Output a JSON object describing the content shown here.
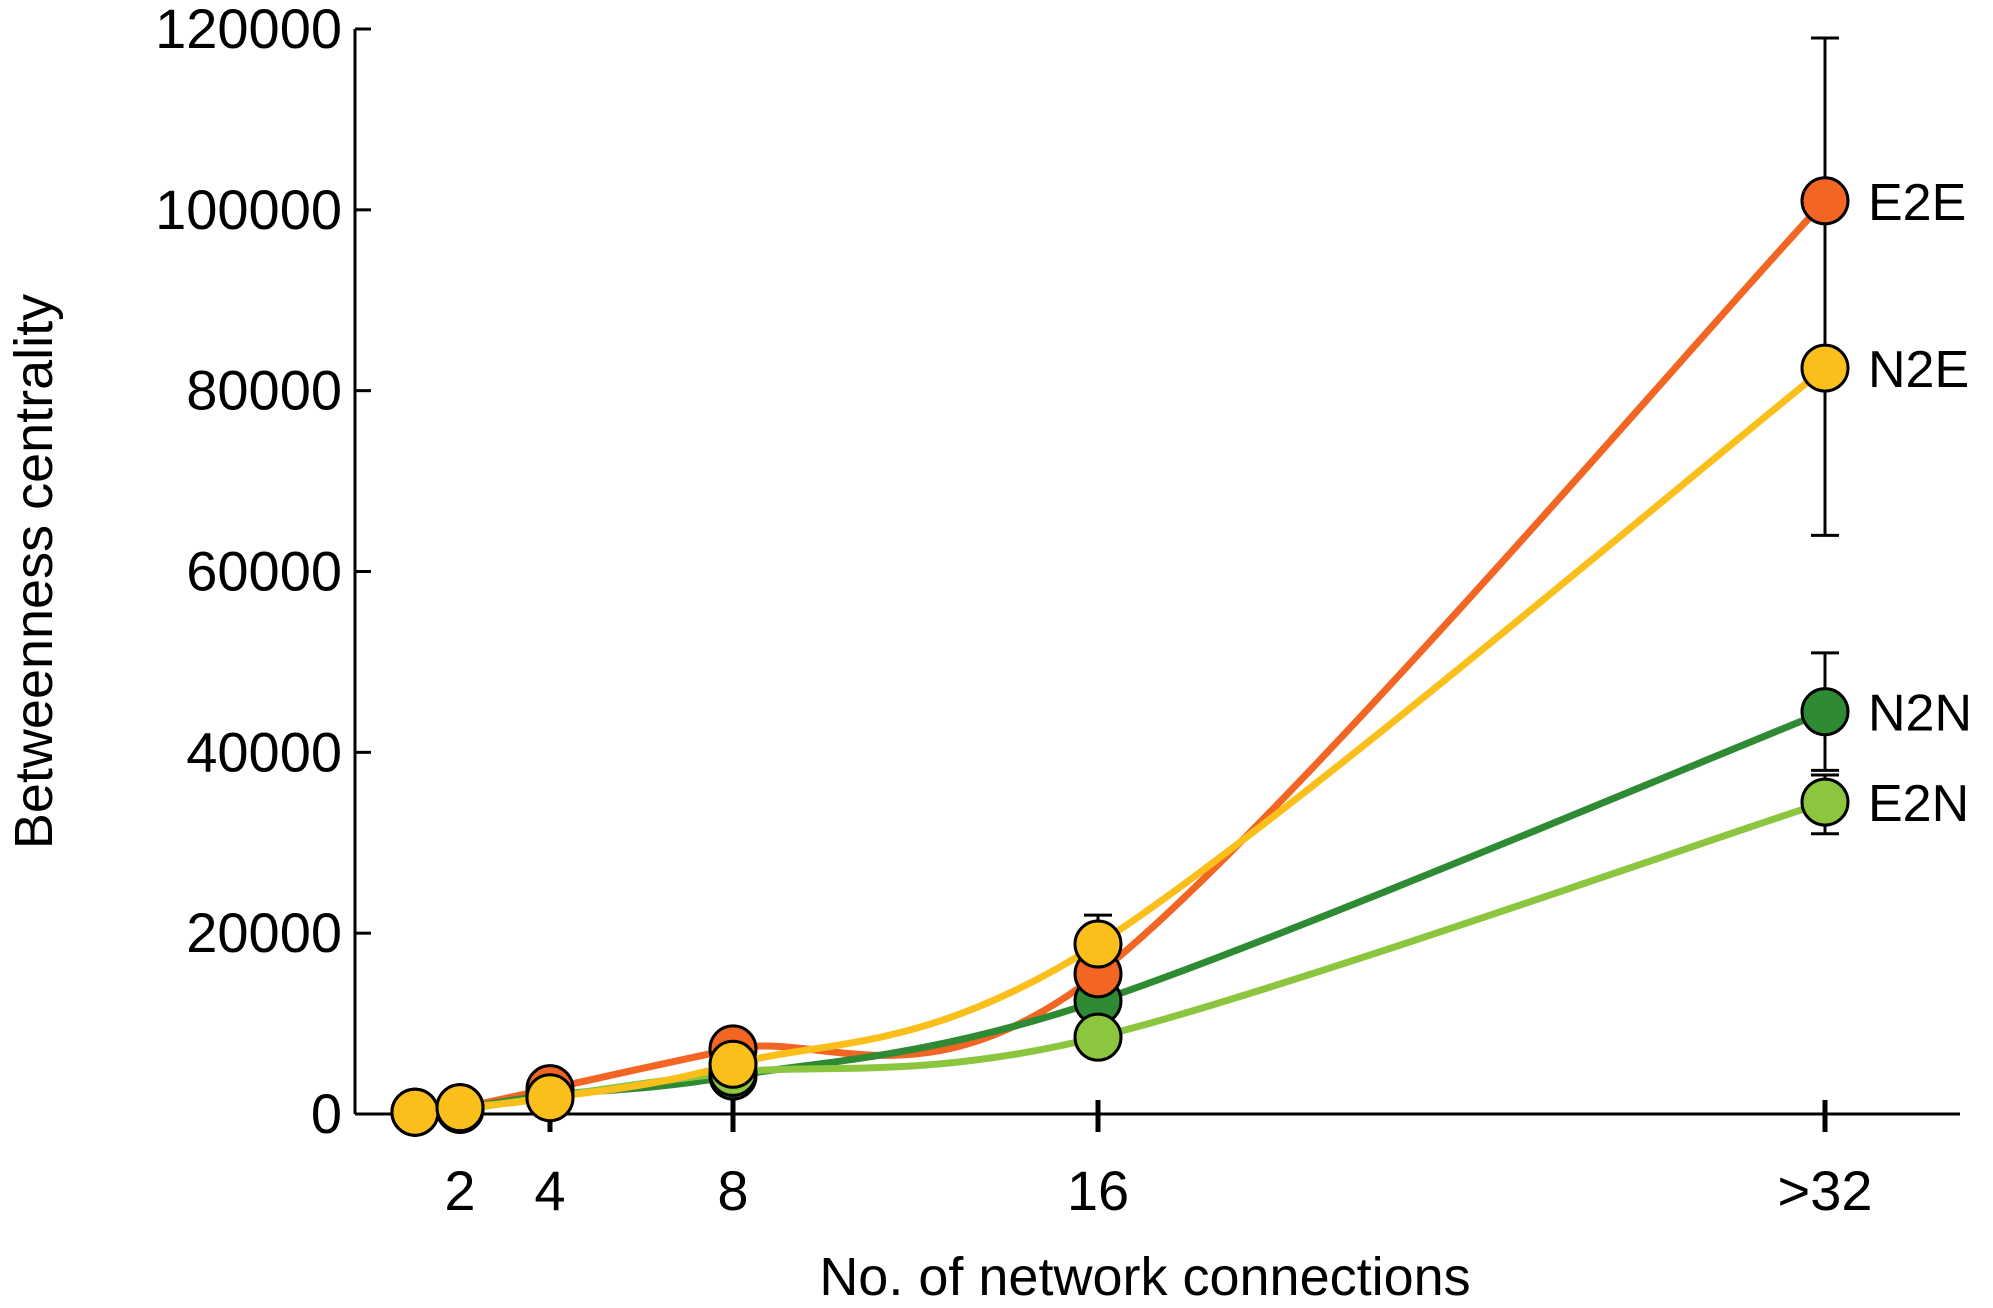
{
  "chart_data": {
    "type": "line",
    "title": "",
    "xlabel": "No. of network connections",
    "ylabel": "Betweenness centrality",
    "ylim": [
      0,
      120000
    ],
    "y_ticks": [
      "0",
      "20000",
      "40000",
      "60000",
      "80000",
      "100000",
      "120000"
    ],
    "y_tick_values": [
      0,
      20000,
      40000,
      60000,
      80000,
      100000,
      120000
    ],
    "x_ticks": [
      {
        "label": "2",
        "value": 2
      },
      {
        "label": "4",
        "value": 4
      },
      {
        "label": "8",
        "value": 8
      },
      {
        "label": "16",
        "value": 16
      },
      {
        "label": ">32",
        "value": 32
      }
    ],
    "x": [
      1,
      2,
      4,
      8,
      16,
      32
    ],
    "grid": false,
    "legend": "inline labels at right end of each series",
    "series": [
      {
        "name": "E2E",
        "color": "#f26522",
        "values": [
          200,
          700,
          2800,
          7200,
          15500,
          101000
        ],
        "error_top": 119000,
        "error_bottom": 64000,
        "error_at_16": 0
      },
      {
        "name": "N2N",
        "color": "#2e8b34",
        "values": [
          200,
          600,
          2100,
          4200,
          12500,
          44500
        ],
        "error_top": 51000,
        "error_bottom": 38000,
        "error_at_16": 0
      },
      {
        "name": "E2N",
        "color": "#8cc63f",
        "values": [
          200,
          500,
          1900,
          4600,
          8500,
          34500
        ],
        "error_top": 37500,
        "error_bottom": 31000,
        "error_at_16": 0
      },
      {
        "name": "N2E",
        "color": "#fbbf1b",
        "values": [
          200,
          700,
          1800,
          5500,
          18800,
          82500
        ],
        "error_top": 0,
        "error_bottom": 0,
        "error_at_16": 22000
      }
    ]
  }
}
